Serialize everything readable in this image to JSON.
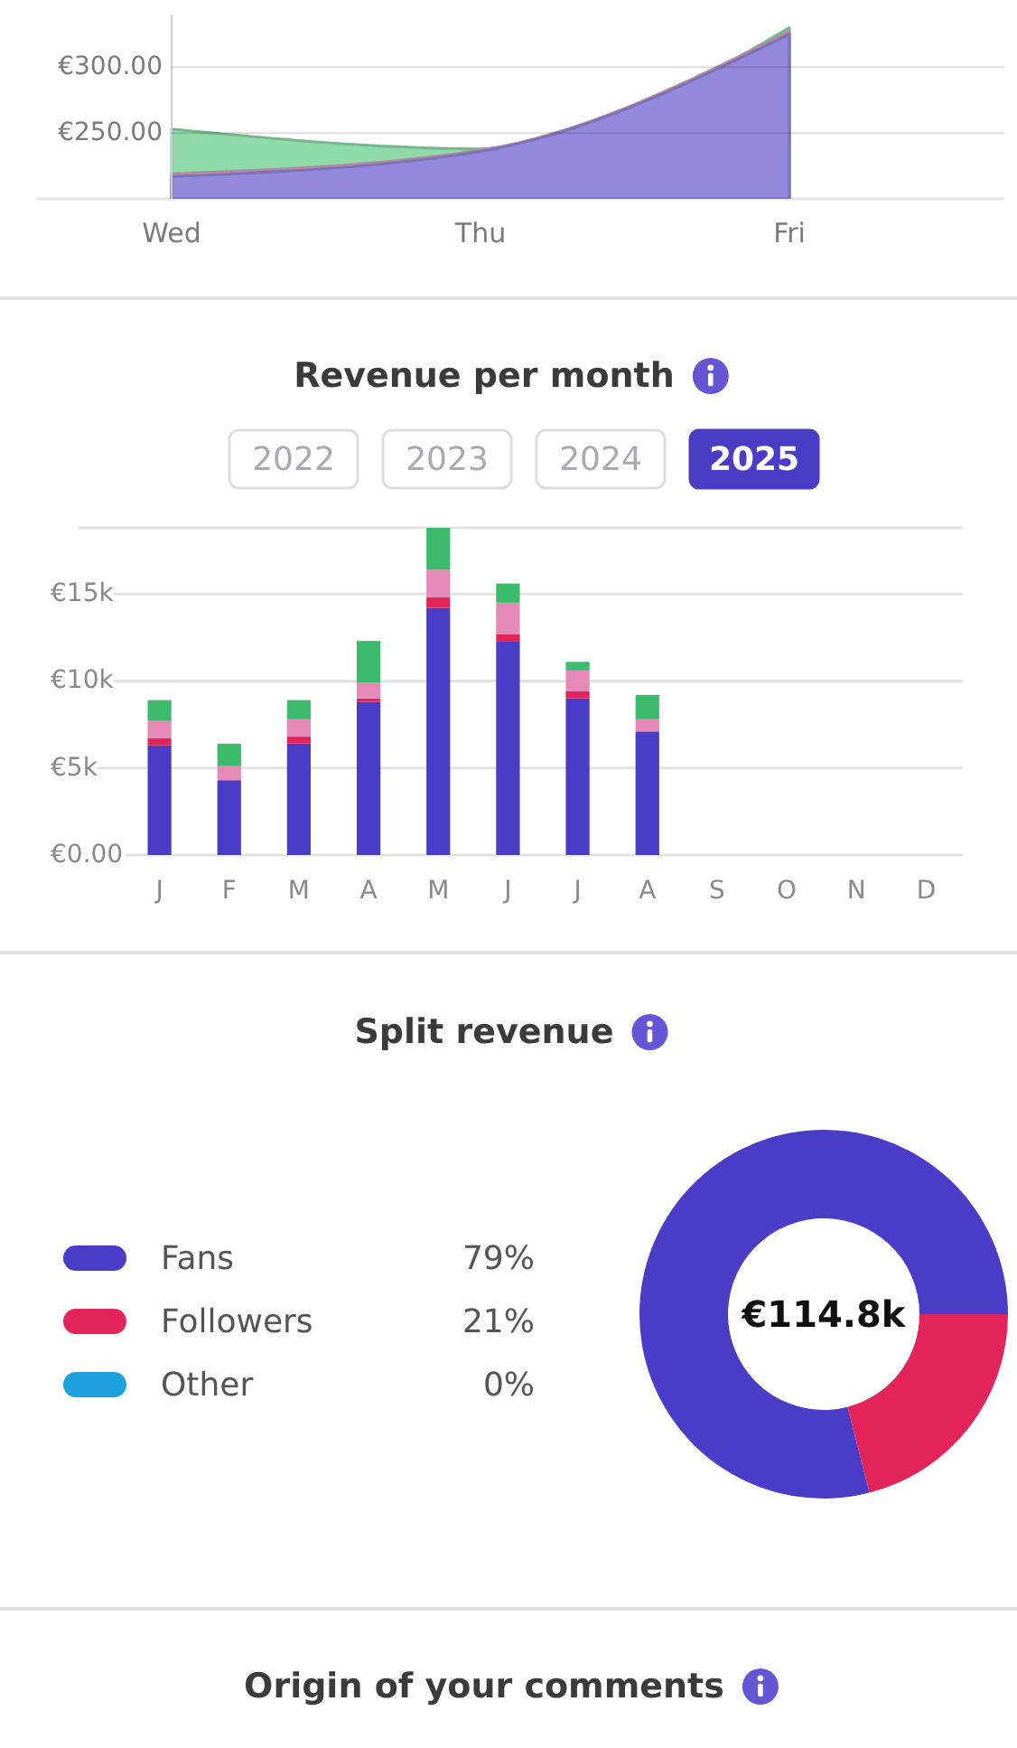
{
  "chart_data": [
    {
      "type": "area",
      "categories": [
        "Wed",
        "Thu",
        "Fri"
      ],
      "series": [
        {
          "color": "#8edba9",
          "values": [
            253,
            238,
            330
          ]
        },
        {
          "color": "#d9a3c0",
          "values": [
            219,
            237,
            327
          ]
        },
        {
          "color": "#9389dc",
          "values": [
            217,
            236,
            325
          ]
        }
      ],
      "ylim": [
        200,
        340
      ],
      "yticks": [
        {
          "value": 250,
          "label": "€250.00"
        },
        {
          "value": 300,
          "label": "€300.00"
        }
      ],
      "grid": "y"
    },
    {
      "type": "bar",
      "title": "Revenue per month",
      "annotations": [
        "2022",
        "2023",
        "2024",
        "2025"
      ],
      "categories": [
        "J",
        "F",
        "M",
        "A",
        "M",
        "J",
        "J",
        "A",
        "S",
        "O",
        "N",
        "D"
      ],
      "stacked": true,
      "series": [
        {
          "color": "#4b3cc8",
          "values": [
            6300,
            4300,
            6400,
            8800,
            14200,
            12300,
            9000,
            7100,
            null,
            null,
            null,
            null
          ]
        },
        {
          "color": "#e3245a",
          "values": [
            400,
            null,
            400,
            200,
            600,
            400,
            400,
            null,
            null,
            null,
            null,
            null
          ]
        },
        {
          "color": "#e58ab8",
          "values": [
            1000,
            800,
            1000,
            900,
            1600,
            1800,
            1200,
            700,
            null,
            null,
            null,
            null
          ]
        },
        {
          "color": "#3dbb6c",
          "values": [
            1200,
            1300,
            1100,
            2400,
            2400,
            1100,
            500,
            1400,
            null,
            null,
            null,
            null
          ]
        }
      ],
      "ylim": [
        0,
        18800
      ],
      "yticks": [
        {
          "value": 0,
          "label": "€0.00"
        },
        {
          "value": 5000,
          "label": "€5k"
        },
        {
          "value": 10000,
          "label": "€10k"
        },
        {
          "value": 15000,
          "label": "€15k"
        },
        {
          "value": 18800,
          "label": null
        }
      ],
      "grid": "y"
    },
    {
      "type": "donut",
      "title": "Split revenue",
      "categories": [
        "Fans",
        "Followers",
        "Other"
      ],
      "values": [
        79,
        21,
        0
      ],
      "colors": [
        "#4b3cc8",
        "#e3245a",
        "#1fa0df"
      ],
      "value_labels": [
        "79%",
        "21%",
        "0%"
      ],
      "legend": "left",
      "annotations": [
        "€114.8k"
      ]
    },
    {
      "type": "other",
      "title": "Origin of your comments"
    }
  ]
}
